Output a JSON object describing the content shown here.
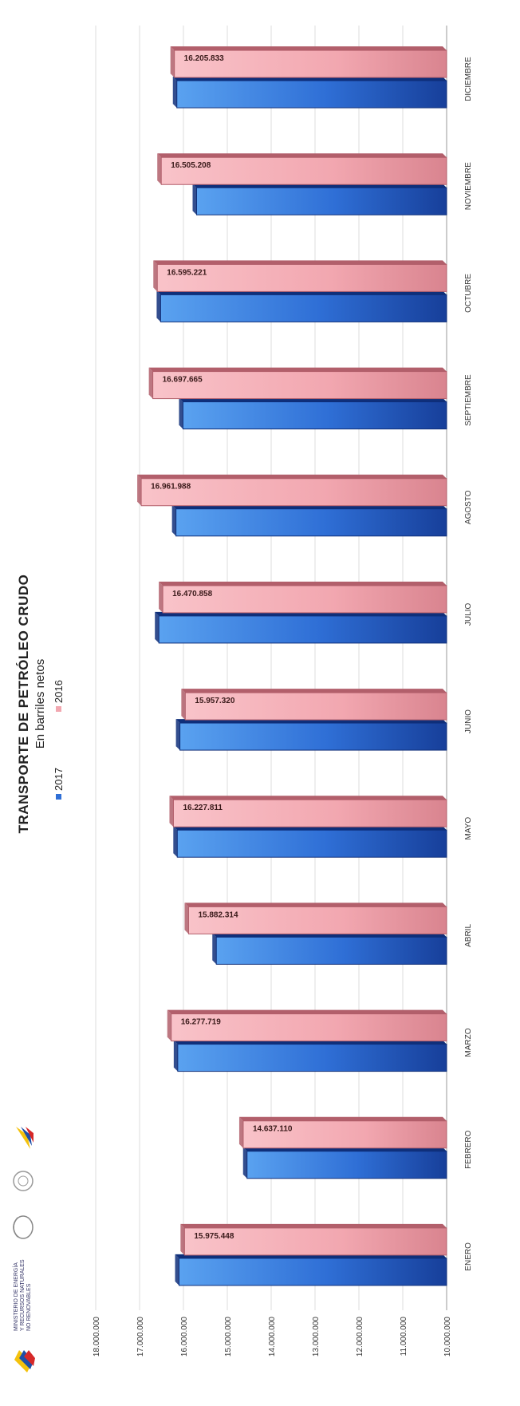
{
  "logos": {
    "ministry_text": "MINISTERIO DE ENERGÍA Y RECURSOS NATURALES NO RENOVABLES"
  },
  "chart_data": {
    "type": "bar",
    "title": "TRANSPORTE DE PETRÓLEO CRUDO",
    "subtitle": "En barriles netos",
    "categories": [
      "ENERO",
      "FEBRERO",
      "MARZO",
      "ABRIL",
      "MAYO",
      "JUNIO",
      "JULIO",
      "AGOSTO",
      "SEPTIEMBRE",
      "OCTUBRE",
      "NOVIEMBRE",
      "DICIEMBRE"
    ],
    "series": [
      {
        "name": "2017",
        "color": "#2f6fd6",
        "values": [
          16100000,
          14550000,
          16130000,
          15250000,
          16140000,
          16080000,
          16560000,
          16170000,
          16010000,
          16520000,
          15700000,
          16150000
        ]
      },
      {
        "name": "2016",
        "color": "#f2a7b0",
        "values": [
          15975448,
          14637110,
          16277719,
          15882314,
          16227811,
          15957320,
          16470858,
          16961988,
          16697665,
          16595221,
          16505208,
          16205833
        ],
        "labels": [
          "15.975.448",
          "14.637.110",
          "16.277.719",
          "15.882.314",
          "16.227.811",
          "15.957.320",
          "16.470.858",
          "16.961.988",
          "16.697.665",
          "16.595.221",
          "16.505.208",
          "16.205.833"
        ]
      }
    ],
    "ylim": [
      10000000,
      18000000
    ],
    "yticks": [
      "18.000.000",
      "17.000.000",
      "16.000.000",
      "15.000.000",
      "14.000.000",
      "13.000.000",
      "12.000.000",
      "11.000.000",
      "10.000.000"
    ],
    "grid": true,
    "legend": "top"
  }
}
